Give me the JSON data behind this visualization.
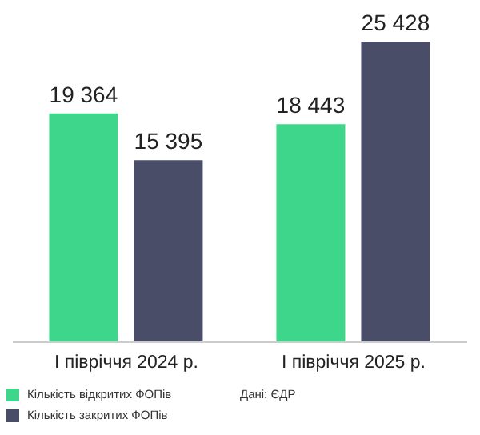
{
  "chart_data": {
    "type": "bar",
    "categories": [
      "I півріччя 2024 р.",
      "I півріччя 2025 р."
    ],
    "series": [
      {
        "name": "Кількість відкритих ФОПів",
        "color": "#3ed68a",
        "values": [
          19364,
          18443
        ],
        "value_labels": [
          "19 364",
          "18 443"
        ]
      },
      {
        "name": "Кількість закритих ФОПів",
        "color": "#4a4d68",
        "values": [
          15395,
          25428
        ],
        "value_labels": [
          "15 395",
          "25 428"
        ]
      }
    ],
    "legend": "bottom left",
    "grid": false,
    "annotations": [
      "Дані: ЄДР"
    ]
  }
}
